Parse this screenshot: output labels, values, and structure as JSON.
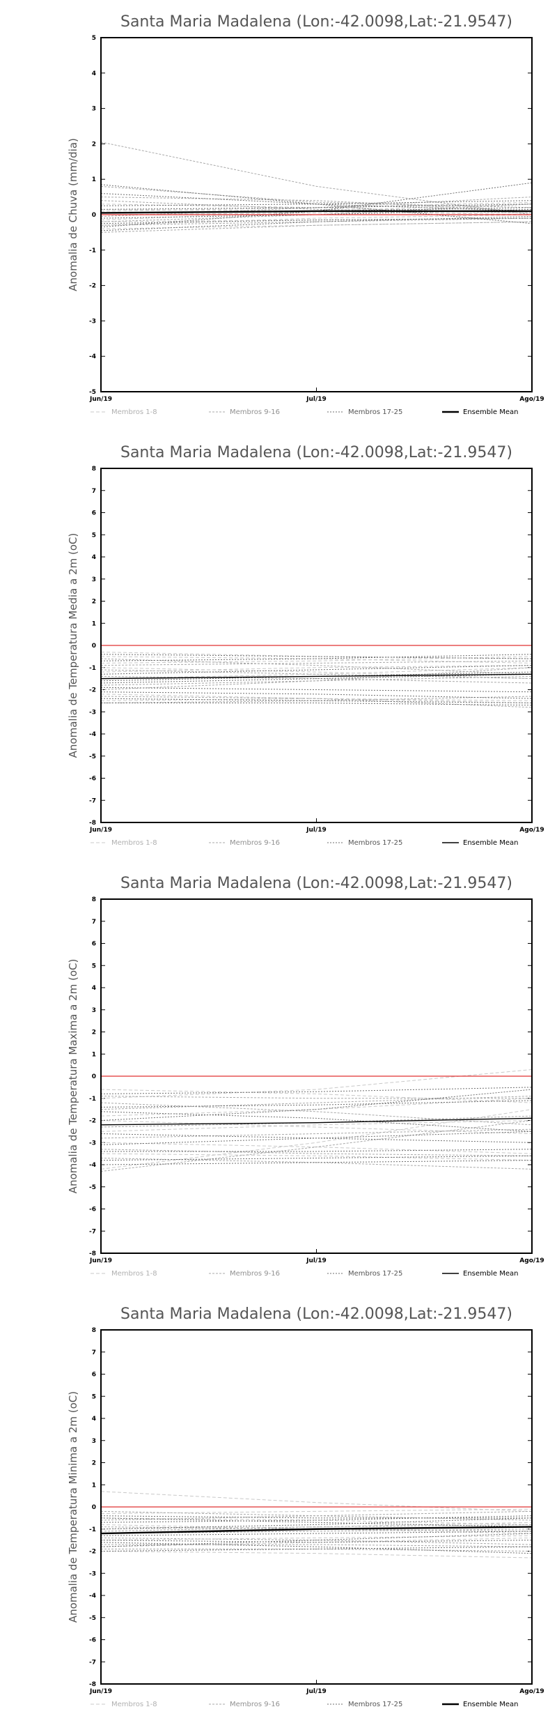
{
  "chart_data": [
    {
      "type": "line",
      "title": "Santa Maria Madalena (Lon:-42.0098,Lat:-21.9547)",
      "xlabel": "",
      "ylabel": "Anomalia de Chuva (mm/dia)",
      "categories": [
        "Jun/19",
        "Jul/19",
        "Ago/19"
      ],
      "ylim": [
        -5,
        5
      ],
      "yticks": [
        -5,
        -4,
        -3,
        -2,
        -1,
        0,
        1,
        2,
        3,
        4,
        5
      ],
      "reference_line": 0,
      "legend_placement": "bottom",
      "legend": [
        "Membros 1-8",
        "Membros 9-16",
        "Membros 17-25",
        "Ensemble Mean"
      ],
      "mean_bold": true,
      "members": [
        [
          -0.15,
          0.1,
          0.3
        ],
        [
          0.0,
          0.05,
          0.1
        ],
        [
          -0.3,
          -0.1,
          0.0
        ],
        [
          0.3,
          0.2,
          0.05
        ],
        [
          -0.2,
          -0.15,
          -0.1
        ],
        [
          0.1,
          0.2,
          0.35
        ],
        [
          -0.4,
          -0.3,
          -0.2
        ],
        [
          0.15,
          0.1,
          0.0
        ],
        [
          2.05,
          0.8,
          0.0
        ],
        [
          0.4,
          0.15,
          0.05
        ],
        [
          -0.05,
          0.2,
          0.5
        ],
        [
          -0.3,
          -0.2,
          -0.1
        ],
        [
          0.8,
          0.35,
          0.2
        ],
        [
          -0.2,
          0.0,
          0.3
        ],
        [
          0.5,
          0.4,
          0.1
        ],
        [
          -0.5,
          -0.3,
          -0.2
        ],
        [
          0.85,
          0.3,
          -0.25
        ],
        [
          0.15,
          0.2,
          0.3
        ],
        [
          -0.35,
          0.1,
          0.9
        ],
        [
          -0.25,
          -0.15,
          -0.1
        ],
        [
          0.6,
          0.3,
          0.1
        ],
        [
          -0.1,
          0.0,
          0.15
        ],
        [
          0.25,
          0.3,
          0.4
        ],
        [
          -0.45,
          -0.2,
          -0.05
        ],
        [
          0.05,
          0.1,
          0.2
        ]
      ],
      "ensemble_mean": [
        0.05,
        0.1,
        0.1
      ]
    },
    {
      "type": "line",
      "title": "Santa Maria Madalena (Lon:-42.0098,Lat:-21.9547)",
      "xlabel": "",
      "ylabel": "Anomalia de Temperatura Media a 2m (oC)",
      "categories": [
        "Jun/19",
        "Jul/19",
        "Ago/19"
      ],
      "ylim": [
        -8,
        8
      ],
      "yticks": [
        -8,
        -7,
        -6,
        -5,
        -4,
        -3,
        -2,
        -1,
        0,
        1,
        2,
        3,
        4,
        5,
        6,
        7,
        8
      ],
      "reference_line": 0,
      "legend_placement": "bottom",
      "legend": [
        "Membros 1-8",
        "Membros 9-16",
        "Membros 17-25",
        "Ensemble Mean"
      ],
      "mean_bold": false,
      "members": [
        [
          -0.5,
          -0.6,
          -0.8
        ],
        [
          -1.0,
          -1.2,
          -1.5
        ],
        [
          -2.2,
          -2.4,
          -2.5
        ],
        [
          -1.5,
          -1.3,
          -1.0
        ],
        [
          -0.8,
          -0.7,
          -0.5
        ],
        [
          -2.5,
          -2.4,
          -2.6
        ],
        [
          -1.2,
          -1.0,
          -0.9
        ],
        [
          -0.3,
          -0.5,
          -0.6
        ],
        [
          -1.8,
          -1.6,
          -1.4
        ],
        [
          -2.0,
          -1.6,
          -1.0
        ],
        [
          -0.6,
          -0.9,
          -1.3
        ],
        [
          -2.6,
          -2.5,
          -2.3
        ],
        [
          -1.4,
          -1.5,
          -1.7
        ],
        [
          -0.9,
          -0.8,
          -0.7
        ],
        [
          -2.3,
          -2.4,
          -2.8
        ],
        [
          -1.1,
          -1.3,
          -1.5
        ],
        [
          -1.6,
          -1.4,
          -1.2
        ],
        [
          -2.6,
          -2.6,
          -2.7
        ],
        [
          -0.7,
          -0.6,
          -0.4
        ],
        [
          -1.9,
          -2.0,
          -2.1
        ],
        [
          -1.3,
          -1.1,
          -0.9
        ],
        [
          -2.4,
          -2.5,
          -2.6
        ],
        [
          -0.4,
          -0.5,
          -0.6
        ],
        [
          -1.7,
          -1.5,
          -1.3
        ],
        [
          -2.1,
          -2.2,
          -2.4
        ]
      ],
      "ensemble_mean": [
        -1.5,
        -1.4,
        -1.3
      ]
    },
    {
      "type": "line",
      "title": "Santa Maria Madalena (Lon:-42.0098,Lat:-21.9547)",
      "xlabel": "",
      "ylabel": "Anomalia de Temperatura Maxima a 2m (oC)",
      "categories": [
        "Jun/19",
        "Jul/19",
        "Ago/19"
      ],
      "ylim": [
        -8,
        8
      ],
      "yticks": [
        -8,
        -7,
        -6,
        -5,
        -4,
        -3,
        -2,
        -1,
        0,
        1,
        2,
        3,
        4,
        5,
        6,
        7,
        8
      ],
      "reference_line": 0,
      "legend_placement": "bottom",
      "legend": [
        "Membros 1-8",
        "Membros 9-16",
        "Membros 17-25",
        "Ensemble Mean"
      ],
      "mean_bold": false,
      "members": [
        [
          -1.0,
          -0.6,
          0.3
        ],
        [
          -2.5,
          -2.2,
          -2.0
        ],
        [
          -3.5,
          -3.6,
          -3.8
        ],
        [
          -4.2,
          -3.0,
          -1.5
        ],
        [
          -1.8,
          -1.5,
          -1.0
        ],
        [
          -3.0,
          -3.2,
          -3.5
        ],
        [
          -0.6,
          -0.8,
          -1.2
        ],
        [
          -2.0,
          -2.3,
          -2.6
        ],
        [
          -3.3,
          -3.5,
          -3.6
        ],
        [
          -1.5,
          -1.2,
          -0.9
        ],
        [
          -4.3,
          -3.2,
          -2.0
        ],
        [
          -2.8,
          -2.6,
          -2.4
        ],
        [
          -0.9,
          -1.0,
          -1.0
        ],
        [
          -3.7,
          -3.9,
          -4.2
        ],
        [
          -1.2,
          -1.6,
          -2.2
        ],
        [
          -2.3,
          -2.1,
          -1.8
        ],
        [
          -3.4,
          -3.4,
          -3.3
        ],
        [
          -0.8,
          -0.7,
          -0.5
        ],
        [
          -2.6,
          -2.8,
          -3.0
        ],
        [
          -4.0,
          -3.9,
          -3.8
        ],
        [
          -1.6,
          -1.9,
          -2.5
        ],
        [
          -3.1,
          -2.8,
          -2.5
        ],
        [
          -2.0,
          -1.5,
          -0.6
        ],
        [
          -3.8,
          -3.7,
          -3.6
        ],
        [
          -1.4,
          -1.3,
          -1.1
        ]
      ],
      "ensemble_mean": [
        -2.2,
        -2.1,
        -1.9
      ]
    },
    {
      "type": "line",
      "title": "Santa Maria Madalena (Lon:-42.0098,Lat:-21.9547)",
      "xlabel": "",
      "ylabel": "Anomalia de Temperatura Minima a 2m (oC)",
      "categories": [
        "Jun/19",
        "Jul/19",
        "Ago/19"
      ],
      "ylim": [
        -8,
        8
      ],
      "yticks": [
        -8,
        -7,
        -6,
        -5,
        -4,
        -3,
        -2,
        -1,
        0,
        1,
        2,
        3,
        4,
        5,
        6,
        7,
        8
      ],
      "reference_line": 0,
      "legend_placement": "bottom",
      "legend": [
        "Membros 1-8",
        "Membros 9-16",
        "Membros 17-25",
        "Ensemble Mean"
      ],
      "mean_bold": true,
      "members": [
        [
          0.7,
          0.2,
          -0.2
        ],
        [
          -0.5,
          -0.6,
          -0.8
        ],
        [
          -1.5,
          -1.4,
          -1.3
        ],
        [
          -2.0,
          -2.1,
          -2.3
        ],
        [
          -1.0,
          -0.9,
          -0.7
        ],
        [
          -0.3,
          -0.2,
          -0.1
        ],
        [
          -1.8,
          -1.6,
          -1.4
        ],
        [
          -0.8,
          -1.0,
          -1.2
        ],
        [
          -1.2,
          -1.1,
          -1.0
        ],
        [
          -1.9,
          -1.9,
          -2.0
        ],
        [
          -0.6,
          -0.4,
          -0.2
        ],
        [
          -1.4,
          -1.5,
          -1.7
        ],
        [
          -0.2,
          -0.4,
          -0.6
        ],
        [
          -1.7,
          -1.7,
          -1.8
        ],
        [
          -1.1,
          -0.9,
          -0.8
        ],
        [
          -0.9,
          -1.0,
          -1.1
        ],
        [
          -1.6,
          -1.8,
          -2.1
        ],
        [
          -0.4,
          -0.5,
          -0.5
        ],
        [
          -1.3,
          -1.2,
          -1.1
        ],
        [
          -2.0,
          -1.9,
          -1.8
        ],
        [
          -0.7,
          -0.6,
          -0.4
        ],
        [
          -1.5,
          -1.6,
          -1.5
        ],
        [
          -1.0,
          -0.8,
          -0.5
        ],
        [
          -1.8,
          -1.5,
          -1.2
        ],
        [
          -0.5,
          -0.7,
          -0.9
        ]
      ],
      "ensemble_mean": [
        -1.2,
        -1.0,
        -0.9
      ]
    }
  ]
}
